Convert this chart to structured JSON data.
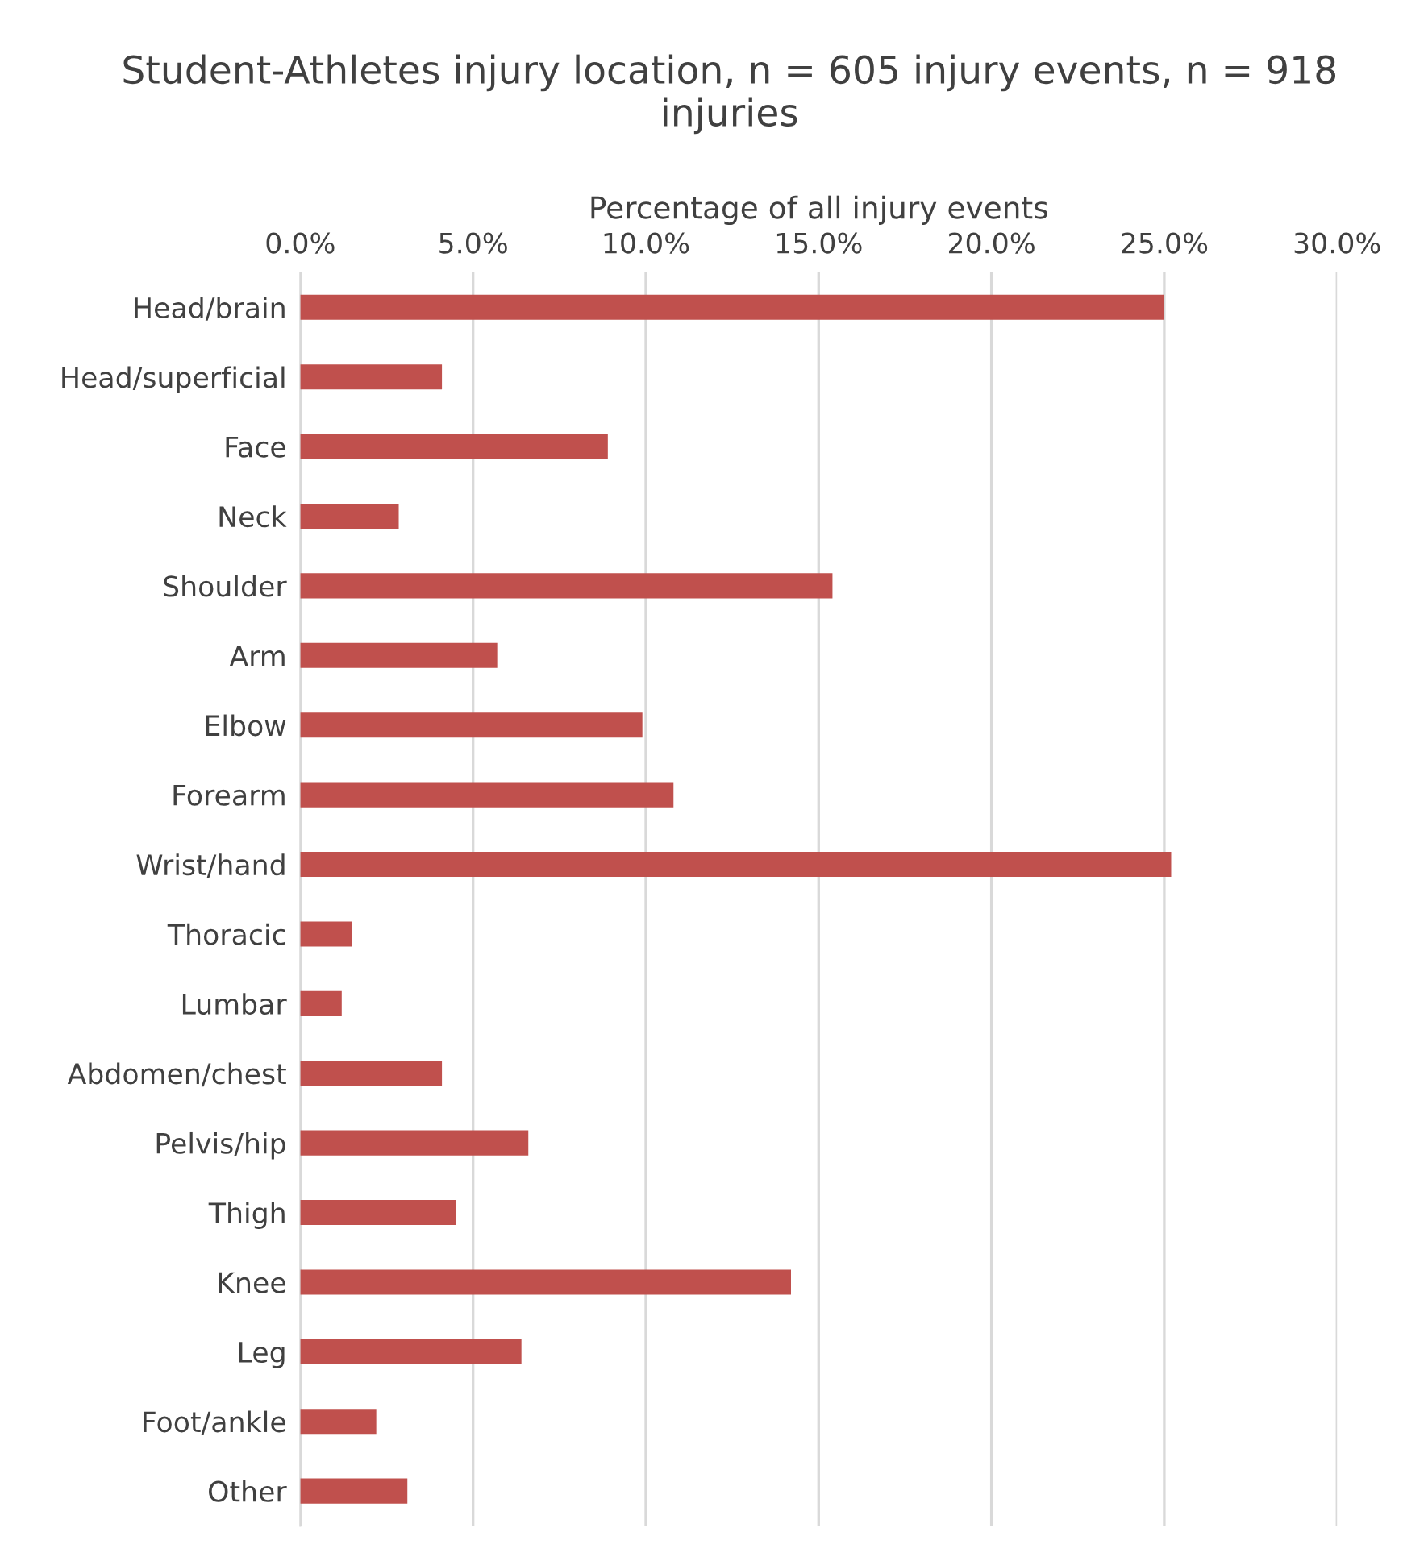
{
  "chart_data": {
    "type": "bar",
    "orientation": "horizontal",
    "title": "Student-Athletes injury location, n = 605 injury events, n = 918 injuries",
    "xlabel": "Percentage of all injury events",
    "categories": [
      "Head/brain",
      "Head/superficial",
      "Face",
      "Neck",
      "Shoulder",
      "Arm",
      "Elbow",
      "Forearm",
      "Wrist/hand",
      "Thoracic",
      "Lumbar",
      "Abdomen/chest",
      "Pelvis/hip",
      "Thigh",
      "Knee",
      "Leg",
      "Foot/ankle",
      "Other"
    ],
    "values": [
      25.0,
      4.1,
      8.9,
      2.85,
      15.4,
      5.7,
      9.9,
      10.8,
      25.2,
      1.5,
      1.2,
      4.1,
      6.6,
      4.5,
      14.2,
      6.4,
      2.2,
      3.1
    ],
    "color": "#c0504d",
    "xlim": [
      0,
      30
    ],
    "xticks": [
      {
        "value": 0,
        "label": "0.0%"
      },
      {
        "value": 5,
        "label": "5.0%"
      },
      {
        "value": 10,
        "label": "10.0%"
      },
      {
        "value": 15,
        "label": "15.0%"
      },
      {
        "value": 20,
        "label": "20.0%"
      },
      {
        "value": 25,
        "label": "25.0%"
      },
      {
        "value": 30,
        "label": "30.0%"
      }
    ],
    "grid": "x"
  }
}
